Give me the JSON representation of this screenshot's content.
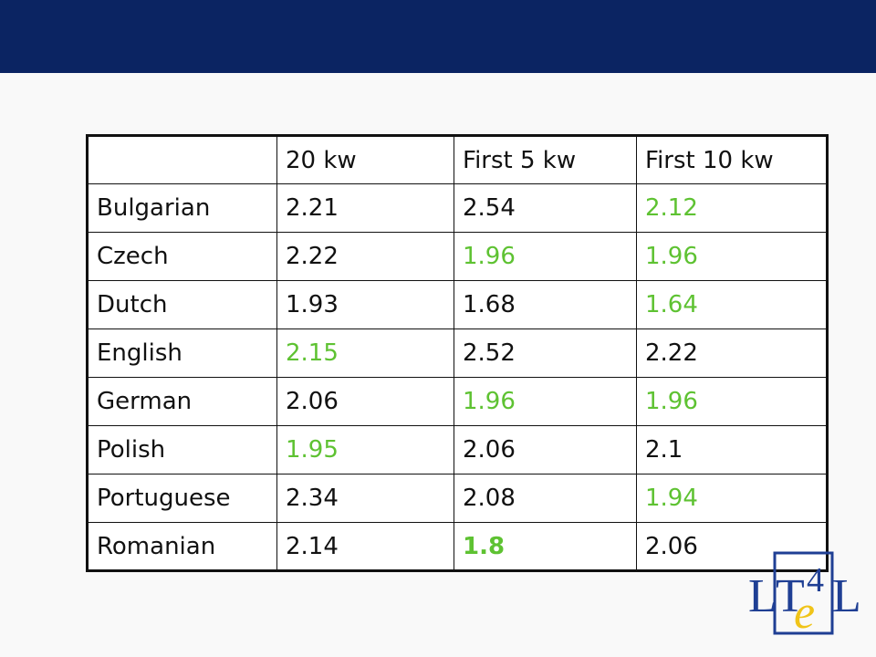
{
  "table": {
    "headers": [
      "",
      "20 kw",
      "First 5 kw",
      "First 10 kw"
    ],
    "rows": [
      {
        "language": "Bulgarian",
        "cells": [
          {
            "v": "2.21",
            "g": false
          },
          {
            "v": "2.54",
            "g": false
          },
          {
            "v": "2.12",
            "g": true
          }
        ]
      },
      {
        "language": "Czech",
        "cells": [
          {
            "v": "2.22",
            "g": false
          },
          {
            "v": "1.96",
            "g": true
          },
          {
            "v": "1.96",
            "g": true
          }
        ]
      },
      {
        "language": "Dutch",
        "cells": [
          {
            "v": "1.93",
            "g": false
          },
          {
            "v": "1.68",
            "g": false
          },
          {
            "v": "1.64",
            "g": true
          }
        ]
      },
      {
        "language": "English",
        "cells": [
          {
            "v": "2.15",
            "g": true
          },
          {
            "v": "2.52",
            "g": false
          },
          {
            "v": "2.22",
            "g": false
          }
        ]
      },
      {
        "language": "German",
        "cells": [
          {
            "v": "2.06",
            "g": false
          },
          {
            "v": "1.96",
            "g": true
          },
          {
            "v": "1.96",
            "g": true
          }
        ]
      },
      {
        "language": "Polish",
        "cells": [
          {
            "v": "1.95",
            "g": true
          },
          {
            "v": "2.06",
            "g": false
          },
          {
            "v": "2.1",
            "g": false
          }
        ]
      },
      {
        "language": "Portuguese",
        "cells": [
          {
            "v": "2.34",
            "g": false
          },
          {
            "v": "2.08",
            "g": false
          },
          {
            "v": "1.94",
            "g": true
          }
        ]
      },
      {
        "language": "Romanian",
        "cells": [
          {
            "v": "2.14",
            "g": false
          },
          {
            "v": "1.8",
            "g": true,
            "bold": true
          },
          {
            "v": "2.06",
            "g": false
          }
        ]
      }
    ]
  },
  "colors": {
    "header_bar": "#0b2462",
    "highlight": "#5ec232",
    "logo_blue": "#1f3f94",
    "logo_yellow": "#f0c419"
  },
  "logo": {
    "l1": "L",
    "t": "T",
    "four": "4",
    "l2": "L",
    "e": "e"
  }
}
